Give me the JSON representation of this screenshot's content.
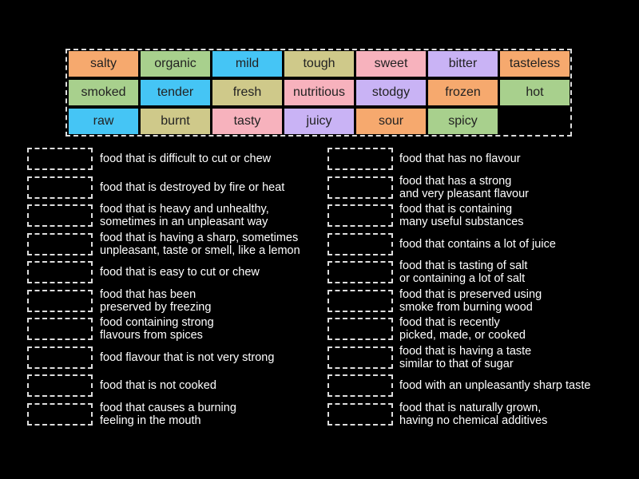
{
  "tiles": [
    {
      "word": "salty",
      "color": "#f6a96e"
    },
    {
      "word": "organic",
      "color": "#a8d08d"
    },
    {
      "word": "mild",
      "color": "#45c5f5"
    },
    {
      "word": "tough",
      "color": "#cfc98a"
    },
    {
      "word": "sweet",
      "color": "#f7b2bd"
    },
    {
      "word": "bitter",
      "color": "#c9b3f5"
    },
    {
      "word": "tasteless",
      "color": "#f6a96e"
    },
    {
      "word": "smoked",
      "color": "#a8d08d"
    },
    {
      "word": "tender",
      "color": "#45c5f5"
    },
    {
      "word": "fresh",
      "color": "#cfc98a"
    },
    {
      "word": "nutritious",
      "color": "#f7b2bd"
    },
    {
      "word": "stodgy",
      "color": "#c9b3f5"
    },
    {
      "word": "frozen",
      "color": "#f6a96e"
    },
    {
      "word": "hot",
      "color": "#a8d08d"
    },
    {
      "word": "raw",
      "color": "#45c5f5"
    },
    {
      "word": "burnt",
      "color": "#cfc98a"
    },
    {
      "word": "tasty",
      "color": "#f7b2bd"
    },
    {
      "word": "juicy",
      "color": "#c9b3f5"
    },
    {
      "word": "sour",
      "color": "#f6a96e"
    },
    {
      "word": "spicy",
      "color": "#a8d08d"
    }
  ],
  "left_definitions": [
    {
      "lines": [
        "food that is difficult to cut or chew"
      ]
    },
    {
      "lines": [
        "food that is destroyed by fire or heat"
      ]
    },
    {
      "lines": [
        "food that is heavy and unhealthy,",
        "sometimes in an unpleasant way"
      ]
    },
    {
      "lines": [
        "food that is having a sharp, sometimes",
        "unpleasant, taste or smell, like a lemon"
      ]
    },
    {
      "lines": [
        "food that is easy to cut or chew"
      ]
    },
    {
      "lines": [
        "food that has been",
        "preserved by freezing"
      ]
    },
    {
      "lines": [
        "food containing strong",
        "flavours from spices"
      ]
    },
    {
      "lines": [
        "food flavour that is not very strong"
      ]
    },
    {
      "lines": [
        "food that is not cooked"
      ]
    },
    {
      "lines": [
        "food that causes a burning",
        "feeling in the mouth"
      ]
    }
  ],
  "right_definitions": [
    {
      "lines": [
        "food that has no flavour"
      ]
    },
    {
      "lines": [
        "food that has a strong",
        "and very pleasant flavour"
      ]
    },
    {
      "lines": [
        "food that is containing",
        "many useful substances"
      ]
    },
    {
      "lines": [
        "food that contains a lot of juice"
      ]
    },
    {
      "lines": [
        "food that is tasting of salt",
        "or containing a lot of salt"
      ]
    },
    {
      "lines": [
        "food that is preserved using",
        "smoke from burning wood"
      ]
    },
    {
      "lines": [
        "food that is recently",
        "picked, made, or cooked"
      ]
    },
    {
      "lines": [
        "food that is having a taste",
        "similar to that of sugar"
      ]
    },
    {
      "lines": [
        "food with an unpleasantly sharp taste"
      ]
    },
    {
      "lines": [
        "food that is naturally grown,",
        "having no chemical additives"
      ]
    }
  ]
}
